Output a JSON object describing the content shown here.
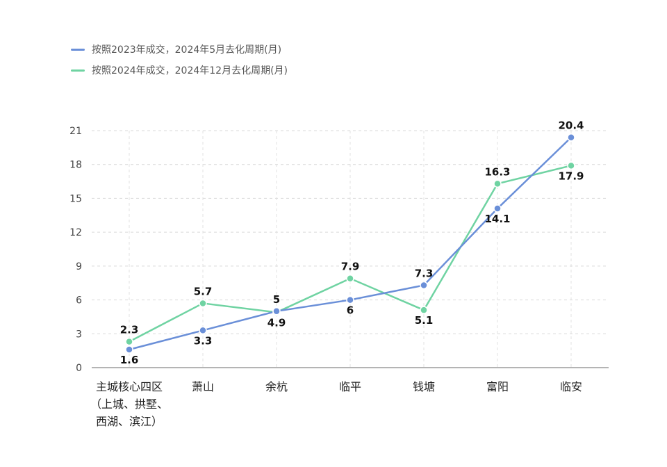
{
  "chart_data": {
    "type": "line",
    "categories": [
      [
        "主城核心四区",
        "（上城、拱墅、",
        "西湖、滨江）"
      ],
      [
        "萧山"
      ],
      [
        "余杭"
      ],
      [
        "临平"
      ],
      [
        "钱塘"
      ],
      [
        "富阳"
      ],
      [
        "临安"
      ]
    ],
    "series": [
      {
        "name": "按照2023年成交，2024年5月去化周期(月)",
        "color": "#6a8fd8",
        "values": [
          1.6,
          3.3,
          5,
          6,
          7.3,
          14.1,
          20.4
        ],
        "labels": [
          "1.6",
          "3.3",
          "5",
          "6",
          "7.3",
          "14.1",
          "20.4"
        ]
      },
      {
        "name": "按照2024年成交，2024年12月去化周期(月)",
        "color": "#6fd3a2",
        "values": [
          2.3,
          5.7,
          4.9,
          7.9,
          5.1,
          16.3,
          17.9
        ],
        "labels": [
          "2.3",
          "5.7",
          "4.9",
          "7.9",
          "5.1",
          "16.3",
          "17.9"
        ]
      }
    ],
    "ylim": [
      0,
      21
    ],
    "yticks": [
      "0",
      "3",
      "6",
      "9",
      "12",
      "15",
      "18",
      "21"
    ],
    "grid": true,
    "legend": "top-left"
  }
}
